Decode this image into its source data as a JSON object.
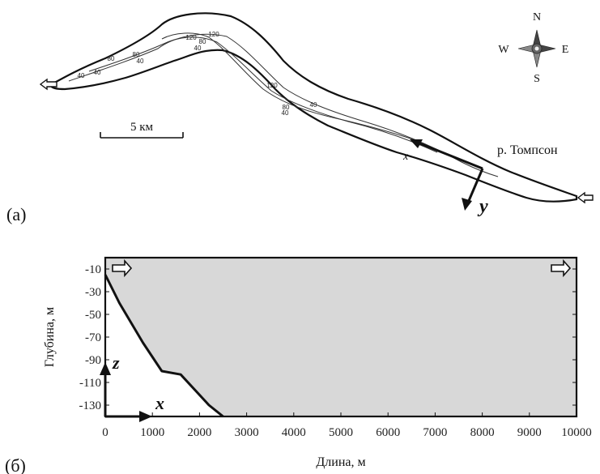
{
  "panel_a": {
    "label": "(a)",
    "scale_bar_label": "5 км",
    "river_label": "р. Томпсон",
    "compass": {
      "n": "N",
      "s": "S",
      "e": "E",
      "w": "W"
    },
    "axis_x": "x",
    "axis_y": "y",
    "contour_labels": [
      "40",
      "80",
      "40",
      "80",
      "40",
      "120",
      "80",
      "120",
      "40",
      "40",
      "120",
      "80",
      "40",
      "120"
    ]
  },
  "panel_b": {
    "label": "(б)",
    "axis_z": "z",
    "axis_x": "x"
  },
  "chart_data": {
    "type": "area",
    "xlabel": "Длина, м",
    "ylabel": "Глубина, м",
    "xlim": [
      0,
      10000
    ],
    "ylim": [
      -140,
      0
    ],
    "x_ticks": [
      0,
      1000,
      2000,
      3000,
      4000,
      5000,
      6000,
      7000,
      8000,
      9000,
      10000
    ],
    "y_ticks": [
      -10,
      -30,
      -50,
      -70,
      -90,
      -110,
      -130
    ],
    "grid": false,
    "fill_color": "#d8d8d8",
    "bottom_profile": {
      "x": [
        0,
        300,
        800,
        1200,
        1600,
        2200,
        2500
      ],
      "y": [
        -15,
        -40,
        -75,
        -100,
        -103,
        -130,
        -140
      ]
    }
  }
}
